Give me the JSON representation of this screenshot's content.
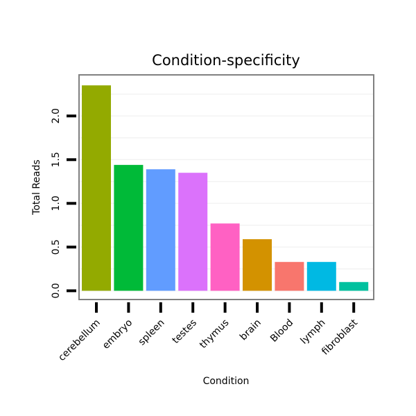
{
  "chart_data": {
    "type": "bar",
    "title": "Condition-specificity",
    "xlabel": "Condition",
    "ylabel": "Total Reads",
    "categories": [
      "cerebellum",
      "embryo",
      "spleen",
      "testes",
      "thymus",
      "brain",
      "Blood",
      "lymph",
      "fibroblast"
    ],
    "values": [
      2.35,
      1.44,
      1.39,
      1.35,
      0.77,
      0.59,
      0.33,
      0.33,
      0.1
    ],
    "colors": [
      "#93AA00",
      "#00BA38",
      "#619CFF",
      "#DB72FB",
      "#FF61C3",
      "#D39200",
      "#F8766D",
      "#00B9E3",
      "#00C19F"
    ],
    "yticks": [
      "0.0",
      "0.5",
      "1.0",
      "1.5",
      "2.0"
    ],
    "ytick_values": [
      0,
      0.5,
      1.0,
      1.5,
      2.0
    ],
    "ylim": [
      -0.1,
      2.47
    ],
    "grid": true,
    "legend": "none"
  }
}
